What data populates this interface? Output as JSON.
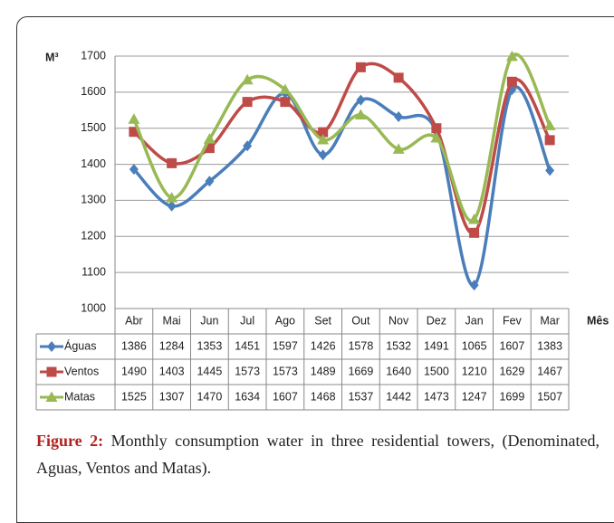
{
  "chart_data": {
    "type": "line",
    "smooth": true,
    "grid": true,
    "data_table": true,
    "ylabel": "M³",
    "xlabel": "Mês",
    "categories": [
      "Abr",
      "Mai",
      "Jun",
      "Jul",
      "Ago",
      "Set",
      "Out",
      "Nov",
      "Dez",
      "Jan",
      "Fev",
      "Mar"
    ],
    "ylim": [
      1000,
      1700
    ],
    "yticks": [
      1000,
      1100,
      1200,
      1300,
      1400,
      1500,
      1600,
      1700
    ],
    "series": [
      {
        "name": "Águas",
        "color": "#4a7ebb",
        "marker": "diamond",
        "values": [
          1386,
          1284,
          1353,
          1451,
          1597,
          1426,
          1578,
          1532,
          1491,
          1065,
          1607,
          1383
        ]
      },
      {
        "name": "Ventos",
        "color": "#be4b48",
        "marker": "square",
        "values": [
          1490,
          1403,
          1445,
          1573,
          1573,
          1489,
          1669,
          1640,
          1500,
          1210,
          1629,
          1467
        ]
      },
      {
        "name": "Matas",
        "color": "#98b954",
        "marker": "triangle",
        "values": [
          1525,
          1307,
          1470,
          1634,
          1607,
          1468,
          1537,
          1442,
          1473,
          1247,
          1699,
          1507
        ]
      }
    ]
  },
  "caption": {
    "label": "Figure 2:",
    "text": "Monthly consumption water in three residential towers, (Denominated, Aguas, Ventos and Matas)."
  }
}
